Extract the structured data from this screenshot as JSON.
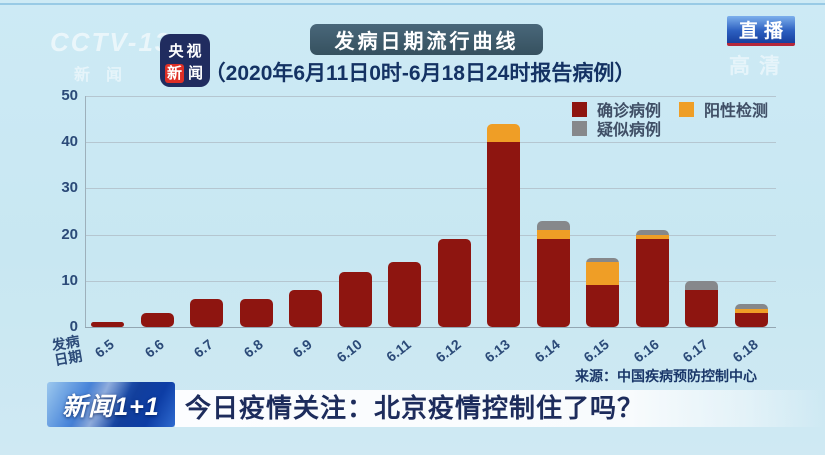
{
  "colors": {
    "background": "#c9e8f3",
    "title_badge_bg": "#3e5a6a",
    "confirmed": "#8e1510",
    "positive": "#ef9e26",
    "suspected": "#86888b",
    "axis_text": "#2b4a78",
    "headline_text": "#1d2c5c"
  },
  "header": {
    "channel_watermark_line1": "CCTV-13",
    "channel_watermark_line2": "新闻",
    "app_logo_top": "央视",
    "app_logo_bottom_red": "新",
    "app_logo_bottom": "闻",
    "live_badge": "直播",
    "hd_watermark": "高清"
  },
  "chart": {
    "title": "发病日期流行曲线",
    "subtitle": "（2020年6月11日0时-6月18日24时报告病例）",
    "axis_corner_label_line1": "发病",
    "axis_corner_label_line2": "日期",
    "source": "来源：中国疾病预防控制中心"
  },
  "chart_data": {
    "type": "bar",
    "stacked": true,
    "title": "发病日期流行曲线",
    "subtitle": "（2020年6月11日0时-6月18日24时报告病例）",
    "xlabel": "发病日期",
    "ylabel": "",
    "ylim": [
      0,
      50
    ],
    "yticks": [
      0,
      10,
      20,
      30,
      40,
      50
    ],
    "grid": true,
    "legend_position": "top-right",
    "categories": [
      "6.5",
      "6.6",
      "6.7",
      "6.8",
      "6.9",
      "6.10",
      "6.11",
      "6.12",
      "6.13",
      "6.14",
      "6.15",
      "6.16",
      "6.17",
      "6.18"
    ],
    "series": [
      {
        "name": "确诊病例",
        "color": "#8e1510",
        "values": [
          1,
          3,
          6,
          6,
          8,
          12,
          14,
          19,
          40,
          19,
          9,
          19,
          8,
          3
        ]
      },
      {
        "name": "阳性检测",
        "color": "#ef9e26",
        "values": [
          0,
          0,
          0,
          0,
          0,
          0,
          0,
          0,
          4,
          2,
          5,
          1,
          0,
          1
        ]
      },
      {
        "name": "疑似病例",
        "color": "#86888b",
        "values": [
          0,
          0,
          0,
          0,
          0,
          0,
          0,
          0,
          0,
          2,
          1,
          1,
          2,
          1
        ]
      }
    ]
  },
  "ticker": {
    "program_logo": "新闻1+1",
    "headline": "今日疫情关注：北京疫情控制住了吗？"
  }
}
